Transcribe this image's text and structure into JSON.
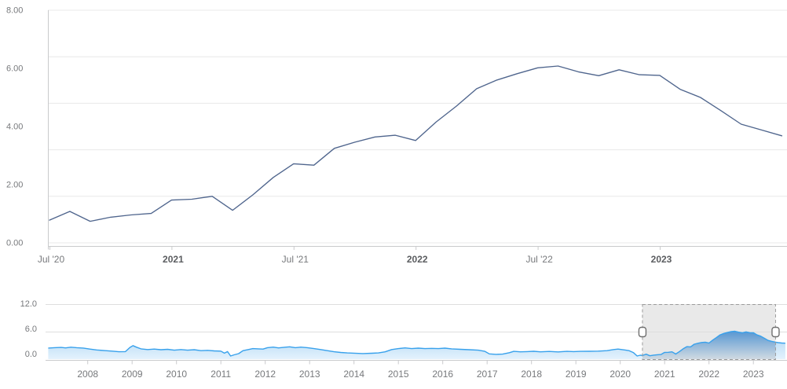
{
  "axis_style": {
    "label_color": "#77797c",
    "bold_label_color": "#5b5d60",
    "grid_color": "#e8e8e8",
    "axis_line_color": "#c9cacc"
  },
  "chart_data": [
    {
      "id": "main",
      "type": "line",
      "title": "",
      "ylim": [
        0,
        8
      ],
      "grid_divisions": 5,
      "y_tick_labels": [
        {
          "label": "8.00",
          "value": 8
        },
        {
          "label": "6.00",
          "value": 6
        },
        {
          "label": "4.00",
          "value": 4
        },
        {
          "label": "2.00",
          "value": 2
        },
        {
          "label": "0.00",
          "value": 0
        }
      ],
      "x_tick_labels": [
        {
          "label": "Jul '20",
          "month_index": 0,
          "bold": false
        },
        {
          "label": "2021",
          "month_index": 6,
          "bold": true
        },
        {
          "label": "Jul '21",
          "month_index": 12,
          "bold": false
        },
        {
          "label": "2022",
          "month_index": 18,
          "bold": true
        },
        {
          "label": "Jul '22",
          "month_index": 24,
          "bold": false
        },
        {
          "label": "2023",
          "month_index": 30,
          "bold": true
        }
      ],
      "series": [
        {
          "name": "value",
          "color": "#4f658d",
          "start": "Jul 2020",
          "interval": "monthly",
          "values": [
            0.78,
            1.08,
            0.74,
            0.88,
            0.96,
            1.01,
            1.47,
            1.5,
            1.6,
            1.12,
            1.65,
            2.25,
            2.72,
            2.67,
            3.25,
            3.46,
            3.64,
            3.7,
            3.52,
            4.15,
            4.7,
            5.3,
            5.6,
            5.82,
            6.02,
            6.08,
            5.88,
            5.75,
            5.95,
            5.78,
            5.76,
            5.28,
            5.0,
            4.55,
            4.08,
            3.88,
            3.68
          ]
        }
      ]
    },
    {
      "id": "navigator",
      "type": "area",
      "ylim": [
        0,
        12
      ],
      "y_tick_labels": [
        {
          "label": "12.0",
          "value": 12
        },
        {
          "label": "6.0",
          "value": 6
        },
        {
          "label": "0.0",
          "value": 0
        }
      ],
      "x_tick_labels": [
        "2008",
        "2009",
        "2010",
        "2011",
        "2012",
        "2013",
        "2014",
        "2015",
        "2016",
        "2017",
        "2018",
        "2019",
        "2020",
        "2021",
        "2022",
        "2023"
      ],
      "selection": {
        "from_year": 2020.5,
        "to_year": 2023.5,
        "source": "main"
      },
      "points_before_selection": [
        [
          2007.11,
          2.42
        ],
        [
          2007.25,
          2.5
        ],
        [
          2007.4,
          2.55
        ],
        [
          2007.5,
          2.45
        ],
        [
          2007.62,
          2.6
        ],
        [
          2007.75,
          2.5
        ],
        [
          2007.9,
          2.42
        ],
        [
          2008.05,
          2.2
        ],
        [
          2008.2,
          2.0
        ],
        [
          2008.4,
          1.85
        ],
        [
          2008.55,
          1.75
        ],
        [
          2008.7,
          1.62
        ],
        [
          2008.85,
          1.65
        ],
        [
          2008.95,
          2.55
        ],
        [
          2009.02,
          2.95
        ],
        [
          2009.1,
          2.6
        ],
        [
          2009.2,
          2.25
        ],
        [
          2009.35,
          2.1
        ],
        [
          2009.5,
          2.2
        ],
        [
          2009.65,
          2.05
        ],
        [
          2009.8,
          2.15
        ],
        [
          2009.95,
          1.95
        ],
        [
          2010.1,
          2.1
        ],
        [
          2010.25,
          1.95
        ],
        [
          2010.4,
          2.05
        ],
        [
          2010.55,
          1.85
        ],
        [
          2010.7,
          1.92
        ],
        [
          2010.85,
          1.8
        ],
        [
          2011.0,
          1.75
        ],
        [
          2011.08,
          1.3
        ],
        [
          2011.15,
          1.65
        ],
        [
          2011.22,
          0.68
        ],
        [
          2011.3,
          0.95
        ],
        [
          2011.4,
          1.2
        ],
        [
          2011.5,
          1.85
        ],
        [
          2011.62,
          2.1
        ],
        [
          2011.72,
          2.3
        ],
        [
          2011.85,
          2.25
        ],
        [
          2011.95,
          2.2
        ],
        [
          2012.05,
          2.5
        ],
        [
          2012.18,
          2.62
        ],
        [
          2012.3,
          2.45
        ],
        [
          2012.45,
          2.6
        ],
        [
          2012.55,
          2.7
        ],
        [
          2012.68,
          2.5
        ],
        [
          2012.8,
          2.62
        ],
        [
          2012.95,
          2.5
        ],
        [
          2013.1,
          2.3
        ],
        [
          2013.25,
          2.1
        ],
        [
          2013.4,
          1.85
        ],
        [
          2013.55,
          1.62
        ],
        [
          2013.7,
          1.45
        ],
        [
          2013.85,
          1.35
        ],
        [
          2014.0,
          1.3
        ],
        [
          2014.2,
          1.22
        ],
        [
          2014.4,
          1.28
        ],
        [
          2014.55,
          1.35
        ],
        [
          2014.7,
          1.6
        ],
        [
          2014.85,
          2.1
        ],
        [
          2015.0,
          2.3
        ],
        [
          2015.15,
          2.45
        ],
        [
          2015.3,
          2.3
        ],
        [
          2015.45,
          2.4
        ],
        [
          2015.6,
          2.3
        ],
        [
          2015.75,
          2.35
        ],
        [
          2015.9,
          2.3
        ],
        [
          2016.05,
          2.4
        ],
        [
          2016.2,
          2.25
        ],
        [
          2016.4,
          2.15
        ],
        [
          2016.6,
          2.05
        ],
        [
          2016.8,
          1.95
        ],
        [
          2016.95,
          1.7
        ],
        [
          2017.05,
          1.15
        ],
        [
          2017.2,
          1.05
        ],
        [
          2017.35,
          1.1
        ],
        [
          2017.5,
          1.4
        ],
        [
          2017.6,
          1.7
        ],
        [
          2017.75,
          1.6
        ],
        [
          2017.9,
          1.65
        ],
        [
          2018.05,
          1.72
        ],
        [
          2018.2,
          1.6
        ],
        [
          2018.4,
          1.68
        ],
        [
          2018.6,
          1.58
        ],
        [
          2018.8,
          1.7
        ],
        [
          2018.95,
          1.65
        ],
        [
          2019.1,
          1.7
        ],
        [
          2019.3,
          1.72
        ],
        [
          2019.5,
          1.75
        ],
        [
          2019.7,
          1.85
        ],
        [
          2019.85,
          2.1
        ],
        [
          2019.95,
          2.2
        ],
        [
          2020.1,
          2.0
        ],
        [
          2020.2,
          1.85
        ],
        [
          2020.3,
          1.4
        ],
        [
          2020.38,
          0.68
        ],
        [
          2020.45,
          0.85
        ]
      ],
      "points_after_selection": [
        [
          2023.56,
          3.6
        ],
        [
          2023.64,
          3.52
        ],
        [
          2023.72,
          3.48
        ]
      ],
      "colors": {
        "line": "#38a1ec",
        "area_top": "#a9d4f2",
        "area_bottom": "#e4f2fd",
        "selected_area_top": "#5897d2",
        "selected_area_bottom": "#d0dae2",
        "selection_mask": "#e9e9e9",
        "selection_border": "#9b9b9b",
        "handle_fill": "#ffffff",
        "handle_border": "#6f6f6f"
      }
    }
  ]
}
